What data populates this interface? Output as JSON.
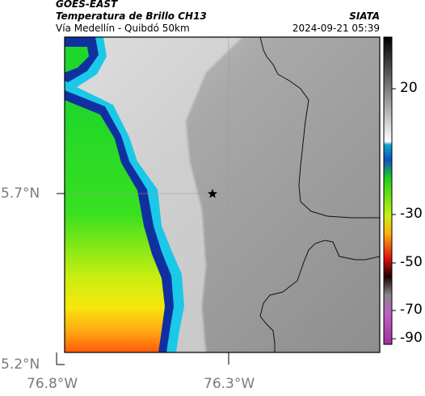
{
  "header": {
    "satellite": "GOES-EAST",
    "product": "Temperatura de Brillo CH13",
    "route": "Vía Medellín - Quibdó 50km",
    "organization": "SIATA",
    "timestamp": "2024-09-21 05:39"
  },
  "axes": {
    "lat_labels": [
      "5.7°N",
      "5.2°N"
    ],
    "lon_labels": [
      "76.8°W",
      "76.3°W"
    ]
  },
  "colorbar": {
    "tick_labels": [
      "20",
      "-30",
      "-50",
      "-70",
      "-90"
    ]
  },
  "colors": {
    "cold_cloud_green": "#22dd22",
    "cloud_yellow": "#f4ee10",
    "cloud_orange": "#ff7a10",
    "warm_gray": "#9a9a9a",
    "edge_blue": "#1030a0",
    "edge_cyan": "#1bc8e8"
  },
  "markers": {
    "location_icon": "star-icon"
  }
}
